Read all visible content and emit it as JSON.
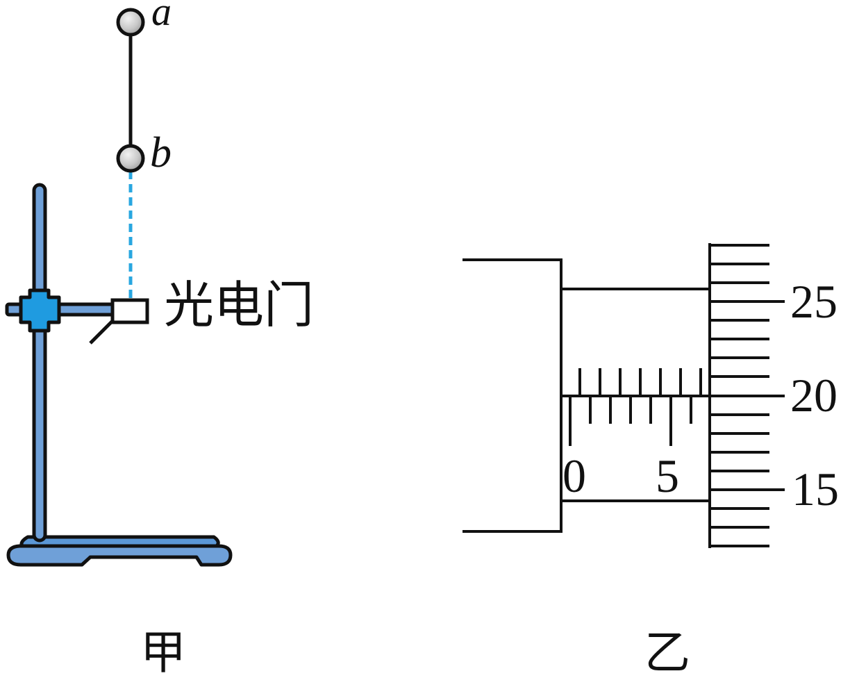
{
  "figure_a": {
    "ball_upper_label": "a",
    "ball_lower_label": "b",
    "photogate_label": "光电门",
    "caption": "甲"
  },
  "figure_b": {
    "sleeve_labels": [
      "0",
      "5"
    ],
    "thimble_labels": [
      "25",
      "20",
      "15"
    ],
    "caption": "乙"
  }
}
